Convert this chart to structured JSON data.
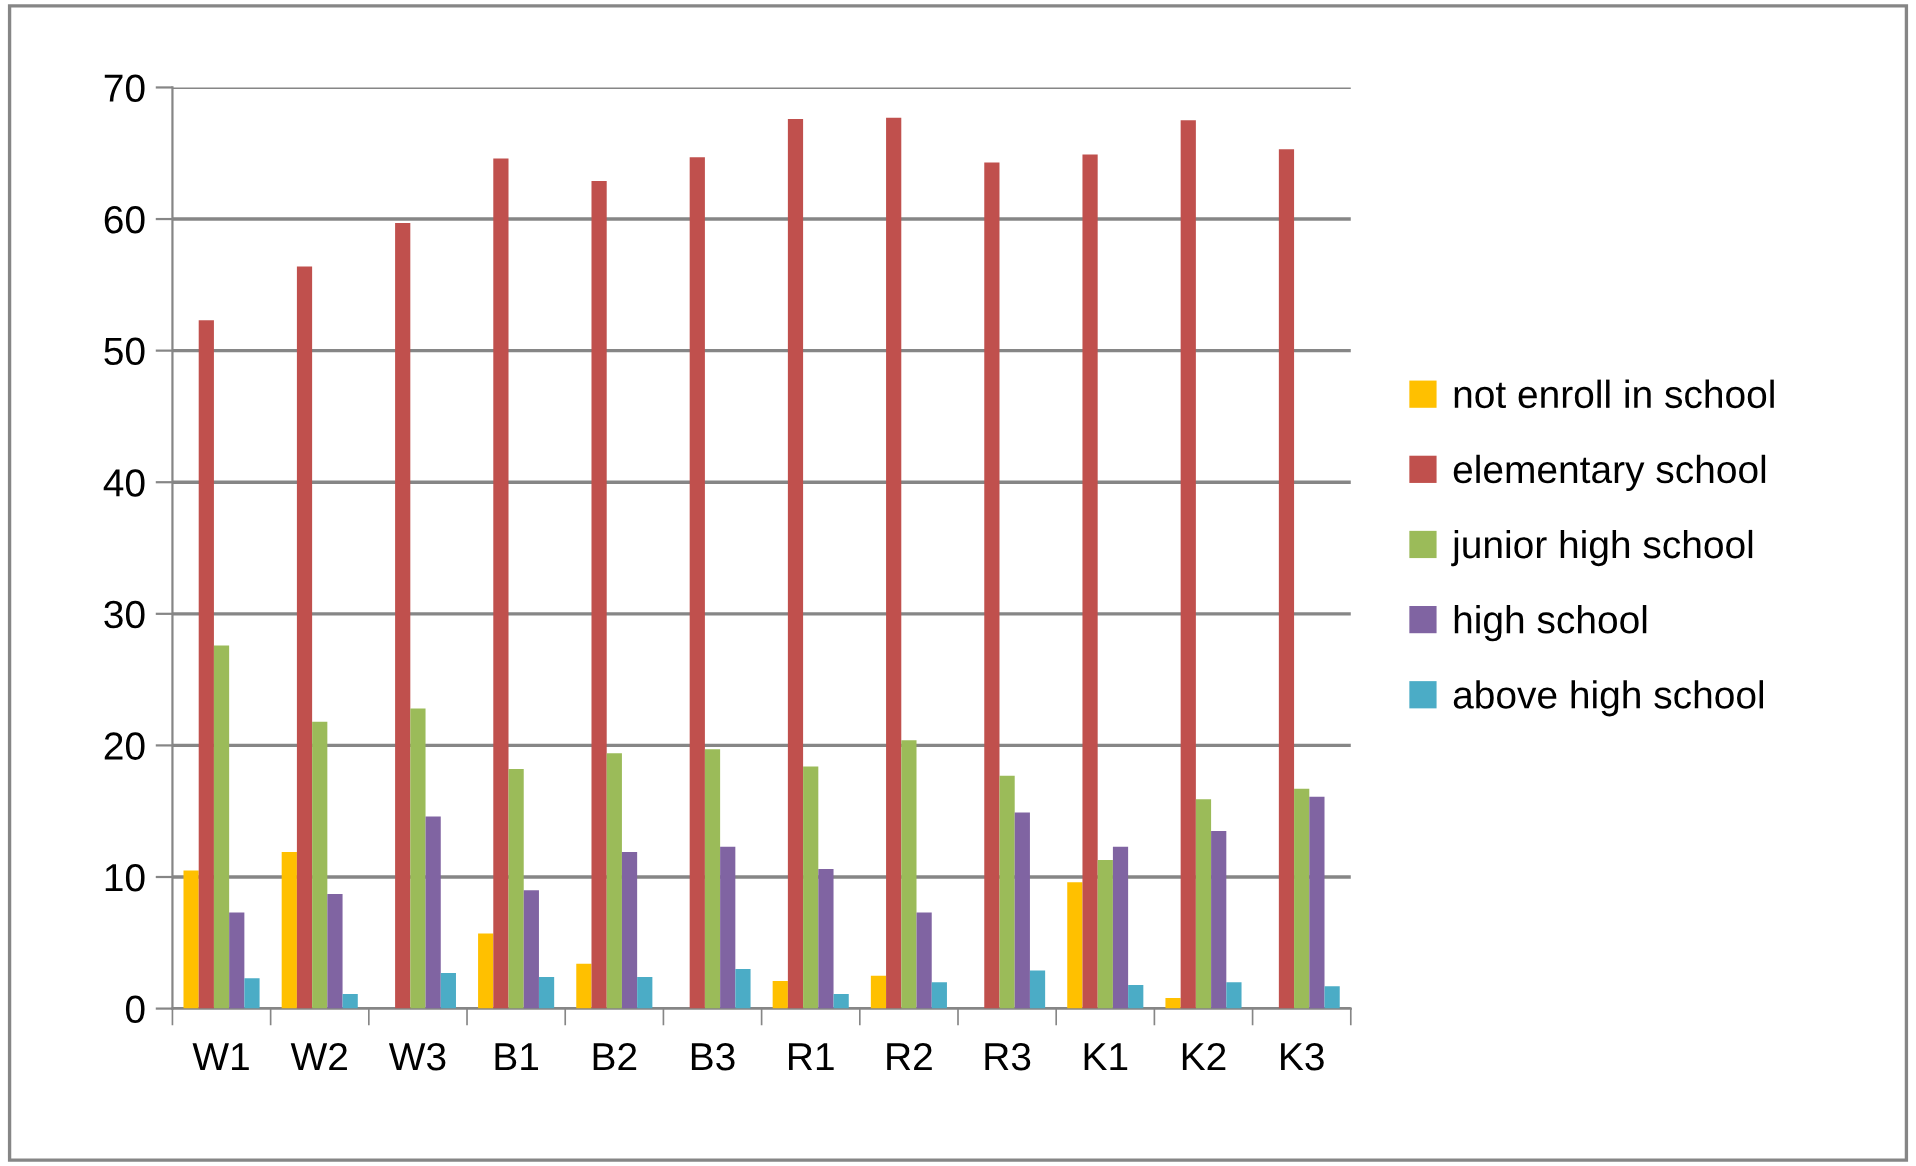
{
  "chart_data": {
    "type": "bar",
    "categories": [
      "W1",
      "W2",
      "W3",
      "B1",
      "B2",
      "B3",
      "R1",
      "R2",
      "R3",
      "K1",
      "K2",
      "K3"
    ],
    "series": [
      {
        "name": "not enroll in school",
        "color": "#ffc000",
        "values": [
          10.5,
          11.9,
          0,
          5.7,
          3.4,
          0,
          2.1,
          2.5,
          0,
          9.6,
          0.8,
          0
        ]
      },
      {
        "name": "elementary school",
        "color": "#c0504d",
        "values": [
          52.3,
          56.4,
          59.7,
          64.6,
          62.9,
          64.7,
          67.6,
          67.7,
          64.3,
          64.9,
          67.5,
          65.3
        ]
      },
      {
        "name": "junior high school",
        "color": "#9bbb59",
        "values": [
          27.6,
          21.8,
          22.8,
          18.2,
          19.4,
          19.7,
          18.4,
          20.4,
          17.7,
          11.3,
          15.9,
          16.7
        ]
      },
      {
        "name": "high school",
        "color": "#8064a2",
        "values": [
          7.3,
          8.7,
          14.6,
          9.0,
          11.9,
          12.3,
          10.6,
          7.3,
          14.9,
          12.3,
          13.5,
          16.1
        ]
      },
      {
        "name": "above high school",
        "color": "#4bacc6",
        "values": [
          2.3,
          1.1,
          2.7,
          2.4,
          2.4,
          3.0,
          1.1,
          2.0,
          2.9,
          1.8,
          2.0,
          1.7
        ]
      }
    ],
    "ylim": [
      0,
      70
    ],
    "yticks": [
      0,
      10,
      20,
      30,
      40,
      50,
      60,
      70
    ],
    "grid": "y",
    "legend": "right"
  }
}
